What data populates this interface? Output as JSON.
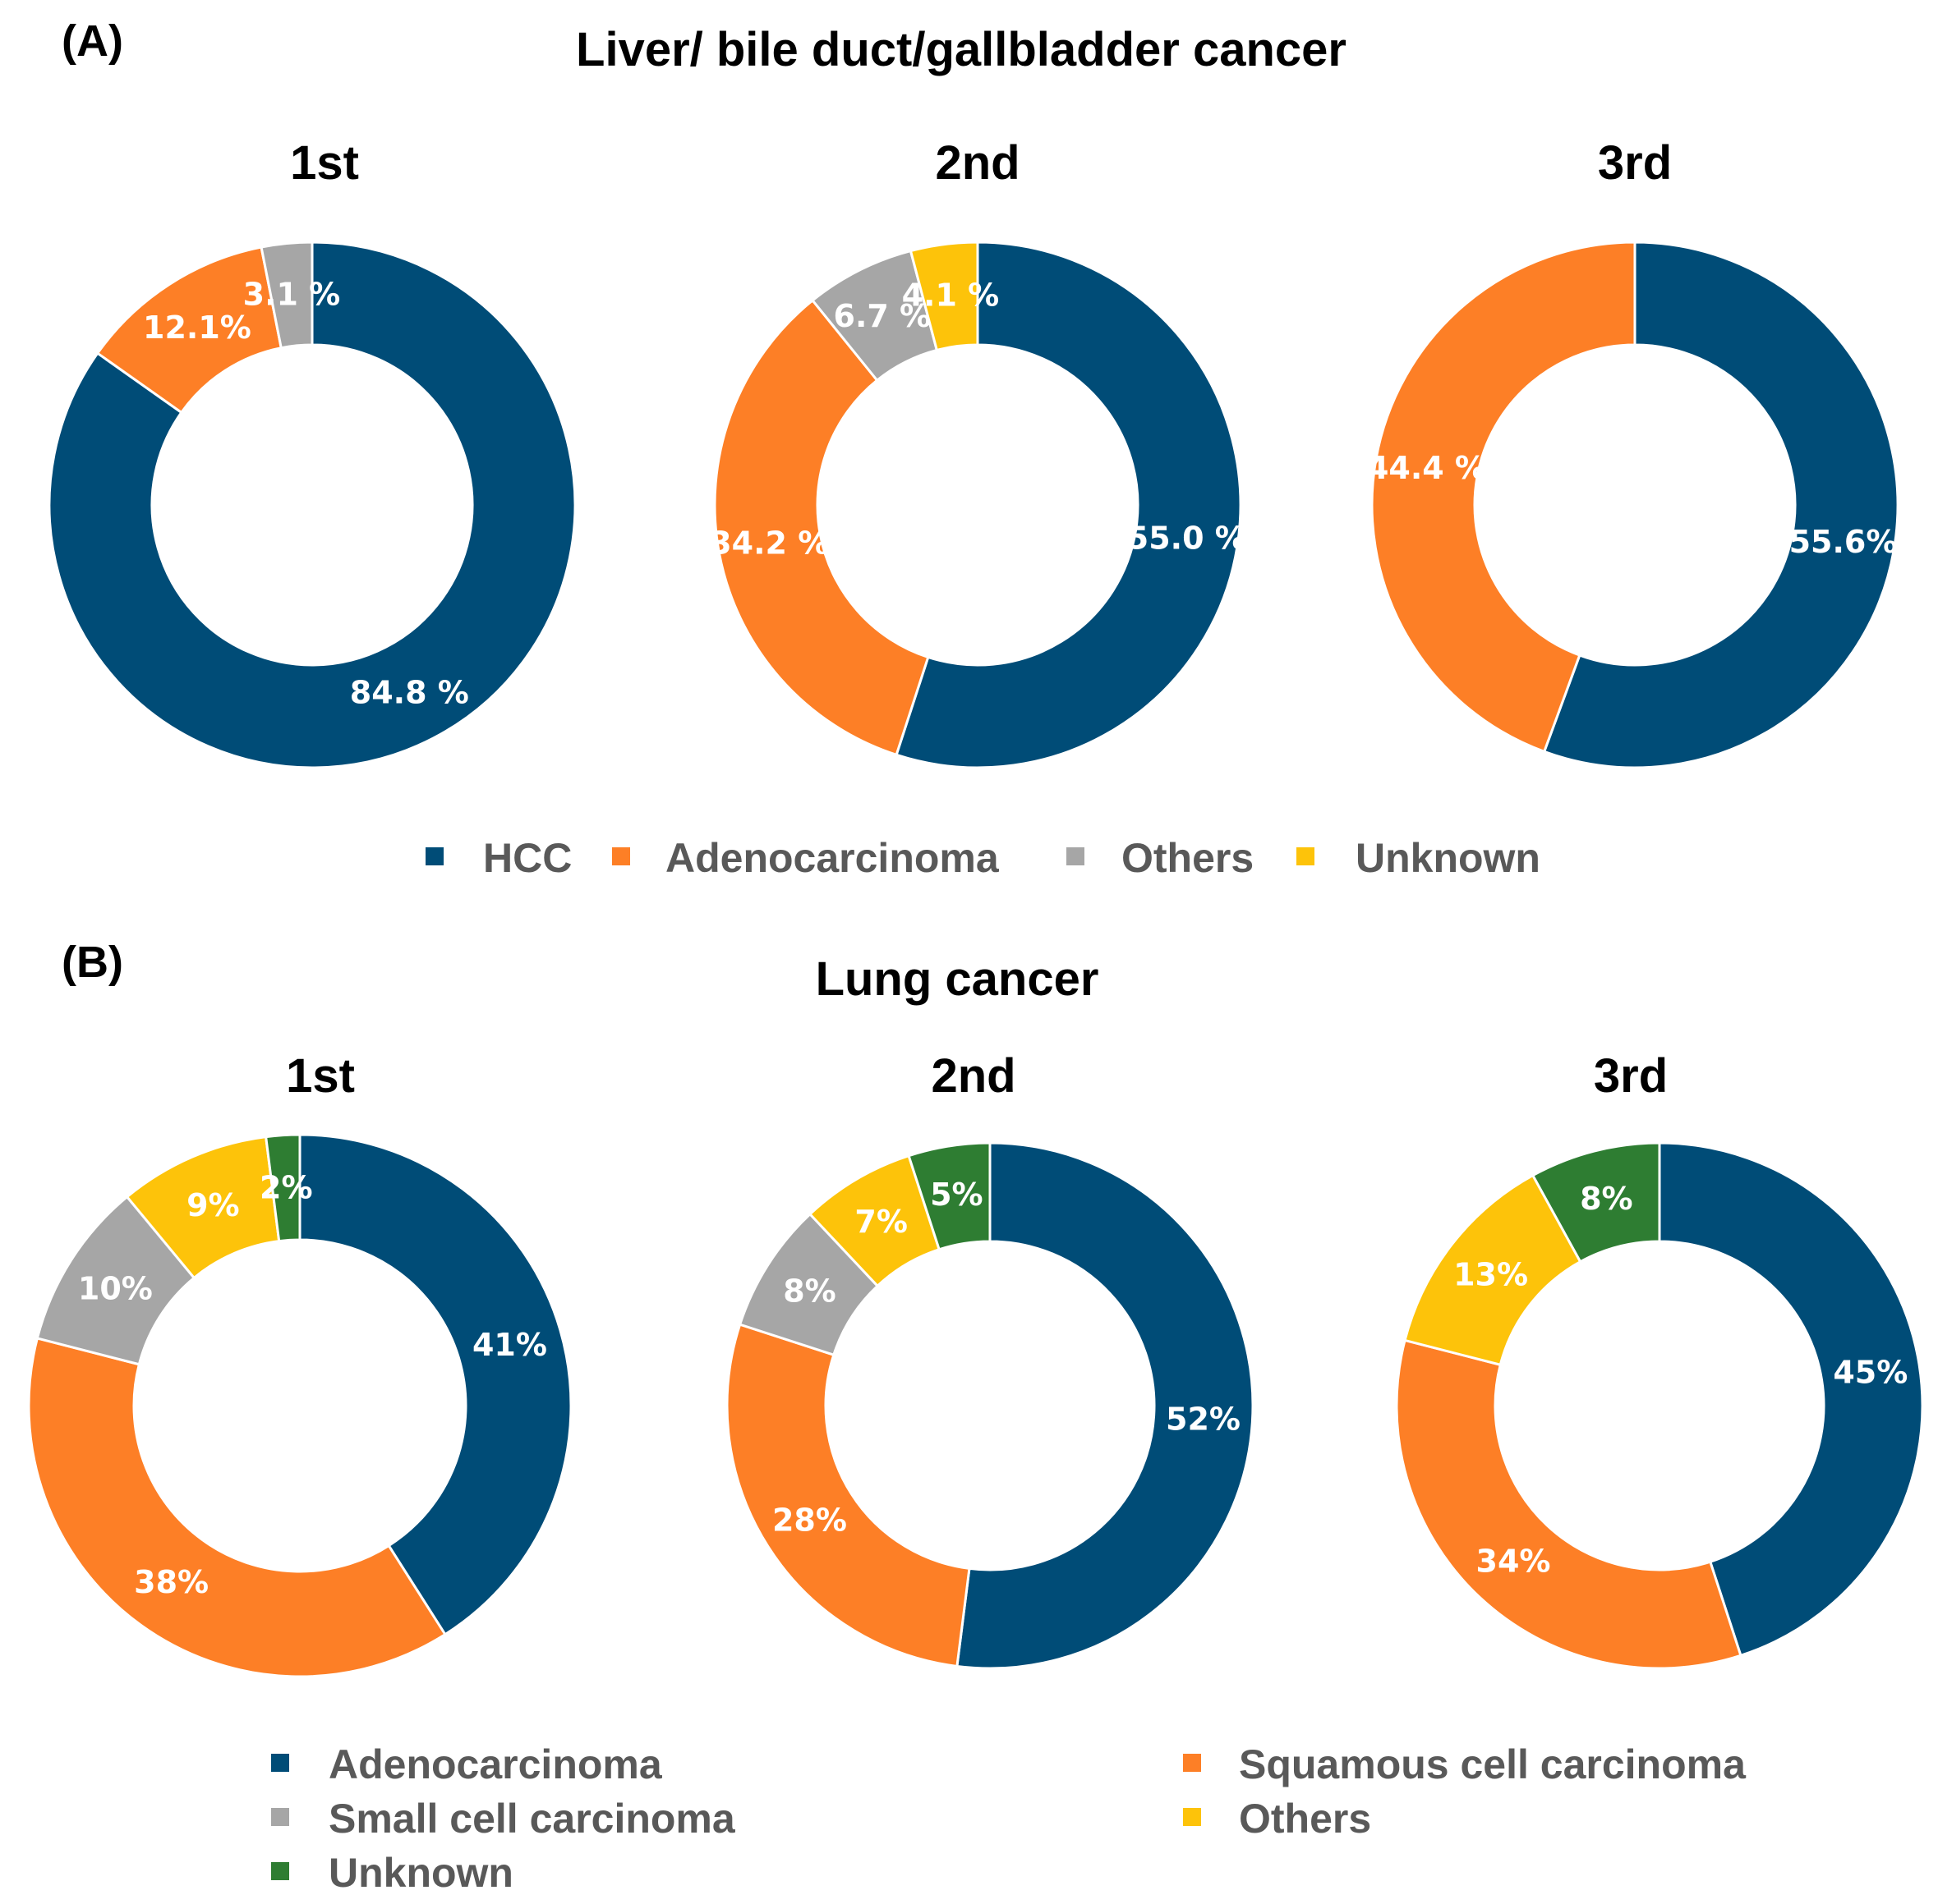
{
  "colors": {
    "blue": "#004c77",
    "orange": "#fd7f26",
    "gray": "#a6a6a6",
    "yellow": "#fdc30a",
    "green": "#2e7d32"
  },
  "panels": [
    {
      "letter": "(A)",
      "title": "Liver/ bile duct/gallbladder cancer",
      "legend": [
        {
          "name": "HCC",
          "color": "#004c77"
        },
        {
          "name": "Adenocarcinoma",
          "color": "#fd7f26"
        },
        {
          "name": "Others",
          "color": "#a6a6a6"
        },
        {
          "name": "Unknown",
          "color": "#fdc30a"
        }
      ]
    },
    {
      "letter": "(B)",
      "title": "Lung cancer",
      "legend": [
        {
          "name": "Adenocarcinoma",
          "color": "#004c77"
        },
        {
          "name": "Squamous cell carcinoma",
          "color": "#fd7f26"
        },
        {
          "name": "Small cell carcinoma",
          "color": "#a6a6a6"
        },
        {
          "name": "Others",
          "color": "#fdc30a"
        },
        {
          "name": "Unknown",
          "color": "#2e7d32"
        }
      ]
    }
  ],
  "chart_data": [
    {
      "type": "pie",
      "title": "1st",
      "panel": "(A) Liver/ bile duct/gallbladder cancer",
      "categories": [
        "HCC",
        "Adenocarcinoma",
        "Others"
      ],
      "values": [
        84.8,
        12.1,
        3.1
      ],
      "labels": [
        "84.8 %",
        "12.1%",
        "3.1 %"
      ],
      "colors": [
        "#004c77",
        "#fd7f26",
        "#a6a6a6"
      ]
    },
    {
      "type": "pie",
      "title": "2nd",
      "panel": "(A) Liver/ bile duct/gallbladder cancer",
      "categories": [
        "HCC",
        "Adenocarcinoma",
        "Others",
        "Unknown"
      ],
      "values": [
        55.0,
        34.2,
        6.7,
        4.1
      ],
      "labels": [
        "55.0 %",
        "34.2 %",
        "6.7 %",
        "4.1 %"
      ],
      "colors": [
        "#004c77",
        "#fd7f26",
        "#a6a6a6",
        "#fdc30a"
      ]
    },
    {
      "type": "pie",
      "title": "3rd",
      "panel": "(A) Liver/ bile duct/gallbladder cancer",
      "categories": [
        "HCC",
        "Adenocarcinoma"
      ],
      "values": [
        55.6,
        44.4
      ],
      "labels": [
        "55.6%",
        "44.4 %"
      ],
      "colors": [
        "#004c77",
        "#fd7f26"
      ]
    },
    {
      "type": "pie",
      "title": "1st",
      "panel": "(B) Lung cancer",
      "categories": [
        "Adenocarcinoma",
        "Squamous cell carcinoma",
        "Small cell carcinoma",
        "Others",
        "Unknown"
      ],
      "values": [
        41,
        38,
        10,
        9,
        2
      ],
      "labels": [
        "41%",
        "38%",
        "10%",
        "9%",
        "2%"
      ],
      "colors": [
        "#004c77",
        "#fd7f26",
        "#a6a6a6",
        "#fdc30a",
        "#2e7d32"
      ]
    },
    {
      "type": "pie",
      "title": "2nd",
      "panel": "(B) Lung cancer",
      "categories": [
        "Adenocarcinoma",
        "Squamous cell carcinoma",
        "Small cell carcinoma",
        "Others",
        "Unknown"
      ],
      "values": [
        52,
        28,
        8,
        7,
        5
      ],
      "labels": [
        "52%",
        "28%",
        "8%",
        "7%",
        "5%"
      ],
      "colors": [
        "#004c77",
        "#fd7f26",
        "#a6a6a6",
        "#fdc30a",
        "#2e7d32"
      ]
    },
    {
      "type": "pie",
      "title": "3rd",
      "panel": "(B) Lung cancer",
      "categories": [
        "Adenocarcinoma",
        "Squamous cell carcinoma",
        "Others",
        "Unknown"
      ],
      "values": [
        45,
        34,
        13,
        8
      ],
      "labels": [
        "45%",
        "34%",
        "13%",
        "8%"
      ],
      "colors": [
        "#004c77",
        "#fd7f26",
        "#fdc30a",
        "#2e7d32"
      ]
    }
  ]
}
